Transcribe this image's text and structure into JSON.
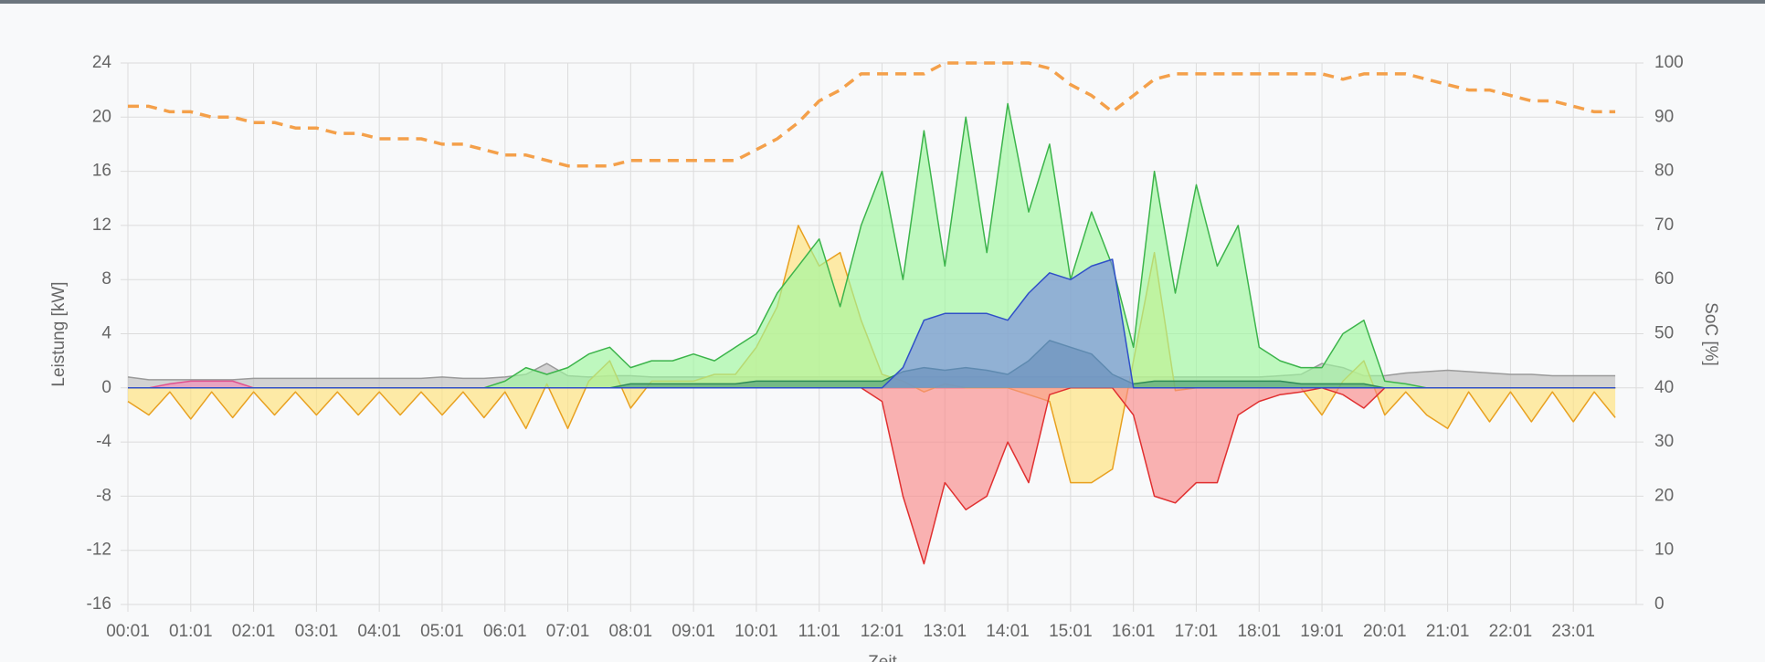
{
  "chart_data": {
    "type": "area",
    "y_label": "Leistung [kW]",
    "y2_label": "SoC [%]",
    "x_label": "Zeit",
    "categories": [
      "00:01",
      null,
      null,
      "01:01",
      null,
      null,
      "02:01",
      null,
      null,
      "03:01",
      null,
      null,
      "04:01",
      null,
      null,
      "05:01",
      null,
      null,
      "06:01",
      null,
      null,
      "07:01",
      null,
      null,
      "08:01",
      null,
      null,
      "09:01",
      null,
      null,
      "10:01",
      null,
      null,
      "11:01",
      null,
      null,
      "12:01",
      null,
      null,
      "13:01",
      null,
      null,
      "14:01",
      null,
      null,
      "15:01",
      null,
      null,
      "16:01",
      null,
      null,
      "17:01",
      null,
      null,
      "18:01",
      null,
      null,
      "19:01",
      null,
      null,
      "20:01",
      null,
      null,
      "21:01",
      null,
      null,
      "22:01",
      null,
      null,
      "23:01",
      null,
      null
    ],
    "ylim": [
      -16,
      24
    ],
    "yticks": [
      -16,
      -12,
      -8,
      -4,
      0,
      4,
      8,
      12,
      16,
      20,
      24
    ],
    "y2lim": [
      0,
      100
    ],
    "y2ticks": [
      0,
      10,
      20,
      30,
      40,
      50,
      60,
      70,
      80,
      90,
      100
    ],
    "grid": true,
    "series": [
      {
        "color": "#9a9a9a",
        "fill": "#bdbdbd",
        "values": [
          0.8,
          0.6,
          0.6,
          0.6,
          0.6,
          0.6,
          0.7,
          0.7,
          0.7,
          0.7,
          0.7,
          0.7,
          0.7,
          0.7,
          0.7,
          0.8,
          0.7,
          0.7,
          0.8,
          1.0,
          1.8,
          0.9,
          0.8,
          0.9,
          0.9,
          0.8,
          0.8,
          0.8,
          0.8,
          0.8,
          0.8,
          0.8,
          0.8,
          0.8,
          0.8,
          0.8,
          0.8,
          0.8,
          0.8,
          0.8,
          0.8,
          0.8,
          0.8,
          0.8,
          0.8,
          0.8,
          0.8,
          0.8,
          0.8,
          0.8,
          0.8,
          0.8,
          0.8,
          0.8,
          0.8,
          0.9,
          1.0,
          1.8,
          1.5,
          0.9,
          0.9,
          1.1,
          1.2,
          1.3,
          1.2,
          1.1,
          1.0,
          1.0,
          0.9,
          0.9,
          0.9,
          0.9
        ]
      },
      {
        "color": "#e0508f",
        "fill": "#f28cb8",
        "values": [
          0,
          0,
          0.3,
          0.5,
          0.5,
          0.5,
          0,
          0,
          0,
          0,
          0,
          0,
          0,
          0,
          0,
          0,
          0,
          0,
          0,
          0,
          0,
          0,
          0,
          0,
          0,
          0,
          0,
          0,
          0,
          0,
          0,
          0,
          0,
          0,
          0,
          0,
          0,
          0,
          0,
          0,
          0,
          0,
          0,
          0,
          0,
          0,
          0,
          0,
          0,
          0,
          0,
          0,
          0,
          0,
          0,
          0,
          0,
          0,
          0,
          0,
          0,
          0,
          0,
          0,
          0,
          0,
          0,
          0,
          0,
          0,
          0,
          0
        ]
      },
      {
        "color": "#e8a020",
        "fill": "#ffe27a",
        "values": [
          -1,
          -2,
          -0.3,
          -2.3,
          -0.3,
          -2.2,
          -0.3,
          -2,
          -0.3,
          -2,
          -0.3,
          -2,
          -0.3,
          -2,
          -0.3,
          -2,
          -0.3,
          -2.2,
          -0.3,
          -3,
          0.3,
          -3,
          0.5,
          2,
          -1.5,
          0.5,
          0.5,
          0.5,
          1,
          1,
          3,
          6,
          12,
          9,
          10,
          5,
          1,
          0.5,
          -0.3,
          0.3,
          0,
          0,
          0,
          -0.5,
          -1,
          -7,
          -7,
          -6,
          2,
          10,
          -0.2,
          0,
          0,
          0,
          0,
          0,
          0,
          -2,
          0.5,
          2,
          -2,
          -0.3,
          -2,
          -3,
          -0.3,
          -2.5,
          -0.3,
          -2.5,
          -0.3,
          -2.5,
          -0.3,
          -2.2
        ]
      },
      {
        "color": "#3cb44b",
        "fill": "#9ef79e",
        "values": [
          0,
          0,
          0,
          0,
          0,
          0,
          0,
          0,
          0,
          0,
          0,
          0,
          0,
          0,
          0,
          0,
          0,
          0,
          0.5,
          1.5,
          1,
          1.5,
          2.5,
          3,
          1.5,
          2,
          2,
          2.5,
          2,
          3,
          4,
          7,
          9,
          11,
          6,
          12,
          16,
          8,
          19,
          9,
          20,
          10,
          21,
          13,
          18,
          8,
          13,
          9,
          3,
          16,
          7,
          15,
          9,
          12,
          3,
          2,
          1.5,
          1.5,
          4,
          5,
          0.5,
          0.3,
          0,
          0,
          0,
          0,
          0,
          0,
          0,
          0,
          0,
          0
        ]
      },
      {
        "color": "#e03030",
        "fill": "#f98a8a",
        "values": [
          0,
          0,
          0,
          0,
          0,
          0,
          0,
          0,
          0,
          0,
          0,
          0,
          0,
          0,
          0,
          0,
          0,
          0,
          0,
          0,
          0,
          0,
          0,
          0,
          0,
          0,
          0,
          0,
          0,
          0,
          0,
          0,
          0,
          0,
          0,
          0,
          -1,
          -8,
          -13,
          -7,
          -9,
          -8,
          -4,
          -7,
          -0.5,
          0,
          0,
          0,
          -2,
          -8,
          -8.5,
          -7,
          -7,
          -2,
          -1,
          -0.5,
          -0.3,
          0,
          -0.5,
          -1.5,
          0,
          0,
          0,
          0,
          0,
          0,
          0,
          0,
          0,
          0,
          0,
          0
        ]
      },
      {
        "color": "#2e8b57",
        "fill": "#4f9e7a",
        "values": [
          0,
          0,
          0,
          0,
          0,
          0,
          0,
          0,
          0,
          0,
          0,
          0,
          0,
          0,
          0,
          0,
          0,
          0,
          0,
          0,
          0,
          0,
          0,
          0,
          0.3,
          0.3,
          0.3,
          0.3,
          0.3,
          0.3,
          0.5,
          0.5,
          0.5,
          0.5,
          0.5,
          0.5,
          0.5,
          1.2,
          1.5,
          1.3,
          1.5,
          1.3,
          1,
          2,
          3.5,
          3,
          2.5,
          1,
          0.3,
          0.5,
          0.5,
          0.5,
          0.5,
          0.5,
          0.5,
          0.5,
          0.3,
          0.3,
          0.3,
          0.3,
          0,
          0,
          0,
          0,
          0,
          0,
          0,
          0,
          0,
          0,
          0,
          0
        ]
      },
      {
        "color": "#3050c8",
        "fill": "#7a8ae0",
        "values": [
          0,
          0,
          0,
          0,
          0,
          0,
          0,
          0,
          0,
          0,
          0,
          0,
          0,
          0,
          0,
          0,
          0,
          0,
          0,
          0,
          0,
          0,
          0,
          0,
          0,
          0,
          0,
          0,
          0,
          0,
          0,
          0,
          0,
          0,
          0,
          0,
          0,
          1.5,
          5,
          5.5,
          5.5,
          5.5,
          5,
          7,
          8.5,
          8,
          9,
          9.5,
          0,
          0,
          0,
          0,
          0,
          0,
          0,
          0,
          0,
          0,
          0,
          0,
          0,
          0,
          0,
          0,
          0,
          0,
          0,
          0,
          0,
          0,
          0,
          0
        ]
      },
      {
        "color": "#f4a04a",
        "axis": "y2",
        "dashed": true,
        "values": [
          92,
          92,
          91,
          91,
          90,
          90,
          89,
          89,
          88,
          88,
          87,
          87,
          86,
          86,
          86,
          85,
          85,
          84,
          83,
          83,
          82,
          81,
          81,
          81,
          82,
          82,
          82,
          82,
          82,
          82,
          84,
          86,
          89,
          93,
          95,
          98,
          98,
          98,
          98,
          100,
          100,
          100,
          100,
          100,
          99,
          96,
          94,
          91,
          94,
          97,
          98,
          98,
          98,
          98,
          98,
          98,
          98,
          98,
          97,
          98,
          98,
          98,
          97,
          96,
          95,
          95,
          94,
          93,
          93,
          92,
          91,
          91
        ]
      }
    ]
  }
}
